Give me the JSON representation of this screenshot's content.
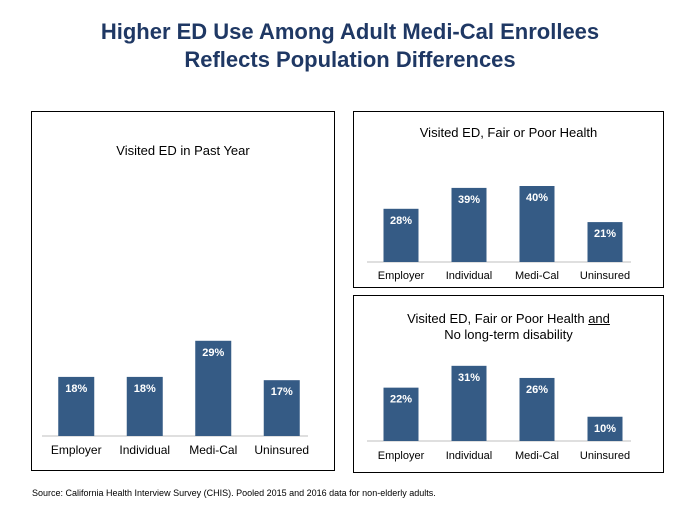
{
  "title_line1": "Higher ED Use Among Adult Medi-Cal Enrollees",
  "title_line2": "Reflects Population Differences",
  "source": "Source: California Health Interview Survey (CHIS). Pooled 2015 and 2016 data for non-elderly adults.",
  "colors": {
    "bar": "#355b85",
    "title": "#1f3864",
    "label": "#ffffff"
  },
  "chart_data": [
    {
      "type": "bar",
      "title": "Visited ED in Past Year",
      "categories": [
        "Employer",
        "Individual",
        "Medi-Cal",
        "Uninsured"
      ],
      "values": [
        18,
        18,
        29,
        17
      ],
      "labels": [
        "18%",
        "18%",
        "29%",
        "17%"
      ],
      "ylim": [
        0,
        60
      ]
    },
    {
      "type": "bar",
      "title": "Visited ED, Fair or Poor Health",
      "categories": [
        "Employer",
        "Individual",
        "Medi-Cal",
        "Uninsured"
      ],
      "values": [
        28,
        39,
        40,
        21
      ],
      "labels": [
        "28%",
        "39%",
        "40%",
        "21%"
      ],
      "ylim": [
        0,
        50
      ]
    },
    {
      "type": "bar",
      "title_line1": "Visited ED, Fair or Poor Health ",
      "title_underline": "and",
      "title_line2": "No long-term disability",
      "categories": [
        "Employer",
        "Individual",
        "Medi-Cal",
        "Uninsured"
      ],
      "values": [
        22,
        31,
        26,
        10
      ],
      "labels": [
        "22%",
        "31%",
        "26%",
        "10%"
      ],
      "ylim": [
        0,
        40
      ]
    }
  ]
}
